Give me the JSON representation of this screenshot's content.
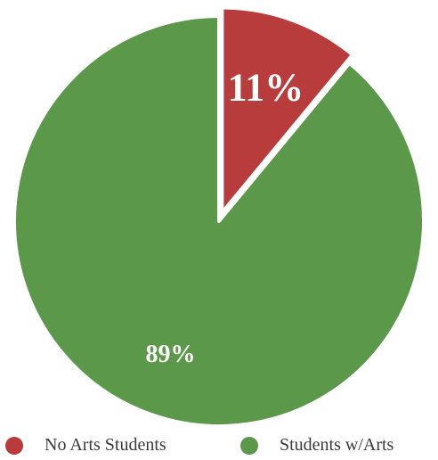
{
  "chart_data": {
    "type": "pie",
    "categories": [
      "No Arts Students",
      "Students w/Arts"
    ],
    "values": [
      11,
      89
    ],
    "data_labels": [
      "11%",
      "89%"
    ],
    "colors": [
      "#b83c3c",
      "#5b984a"
    ],
    "exploded_slice": "No Arts Students",
    "start_angle_deg": 0,
    "direction": "clockwise",
    "legend_position": "bottom",
    "title": ""
  }
}
